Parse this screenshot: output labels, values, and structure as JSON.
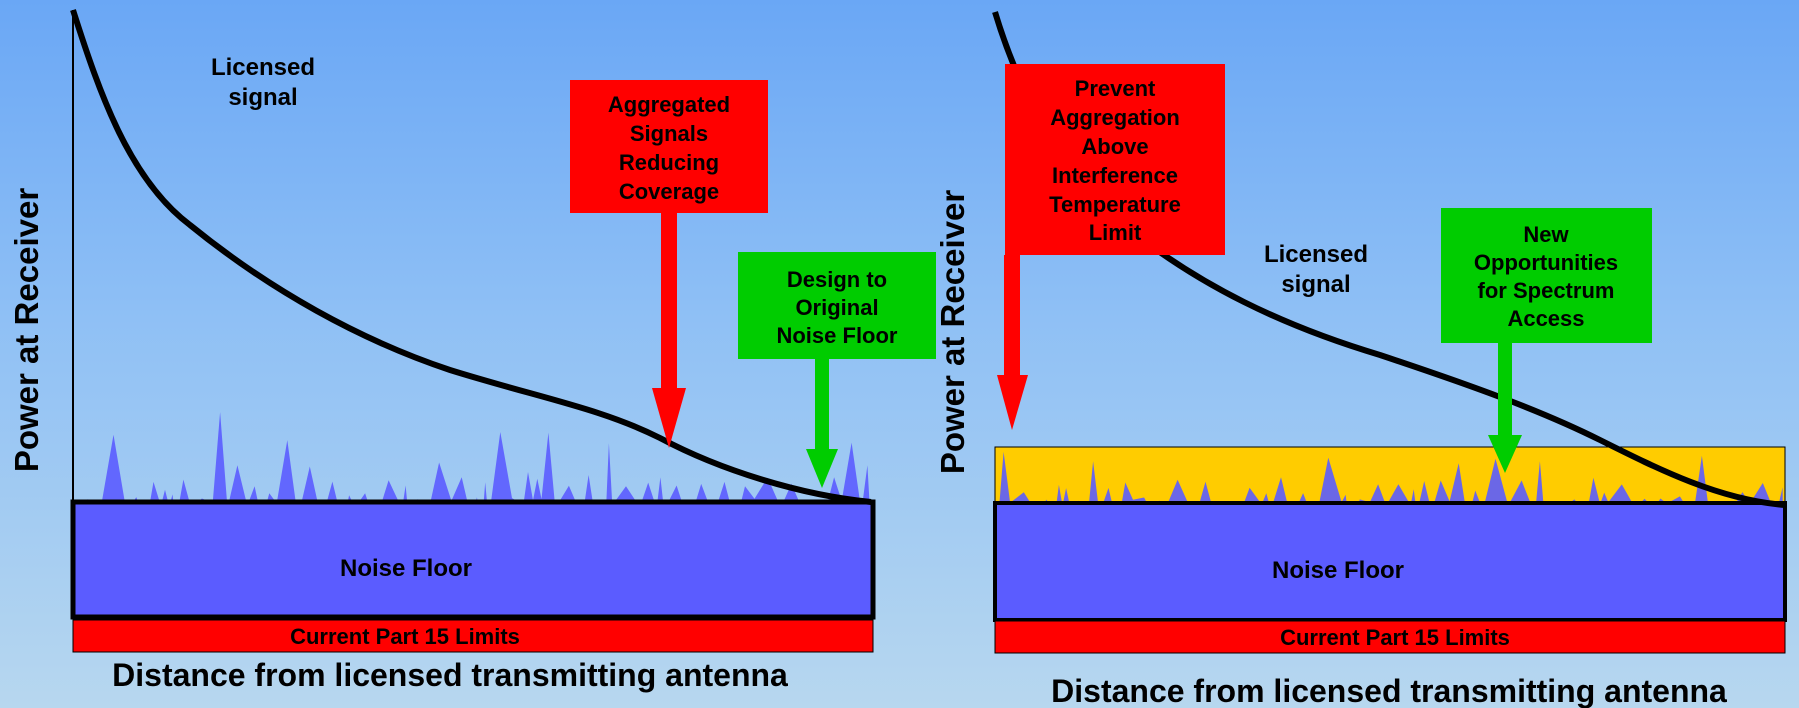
{
  "colors": {
    "background_top": "#6aa7f5",
    "background_bottom": "#b7d7ef",
    "noise": "#5b5cff",
    "limits_bar": "#ff0000",
    "callout_red": "#ff0000",
    "callout_green": "#00cc00",
    "interference_band": "#ffcc00",
    "signal_curve": "#000000"
  },
  "left_panel": {
    "y_axis_label": "Power at Receiver",
    "x_axis_label": "Distance from licensed transmitting antenna",
    "signal_label": [
      "Licensed",
      "signal"
    ],
    "noise_floor_label": "Noise Floor",
    "limits_label": "Current Part 15 Limits",
    "red_callout": [
      "Aggregated",
      "Signals",
      "Reducing",
      "Coverage"
    ],
    "green_callout": [
      "Design to",
      "Original",
      "Noise Floor"
    ]
  },
  "right_panel": {
    "y_axis_label": "Power at Receiver",
    "x_axis_label": "Distance from licensed transmitting antenna",
    "signal_label": [
      "Licensed",
      "signal"
    ],
    "noise_floor_label": "Noise Floor",
    "limits_label": "Current Part 15 Limits",
    "red_callout": [
      "Prevent",
      "Aggregation",
      "Above",
      "Interference",
      "Temperature",
      "Limit"
    ],
    "green_callout": [
      "New",
      "Opportunities",
      "for Spectrum",
      "Access"
    ]
  }
}
